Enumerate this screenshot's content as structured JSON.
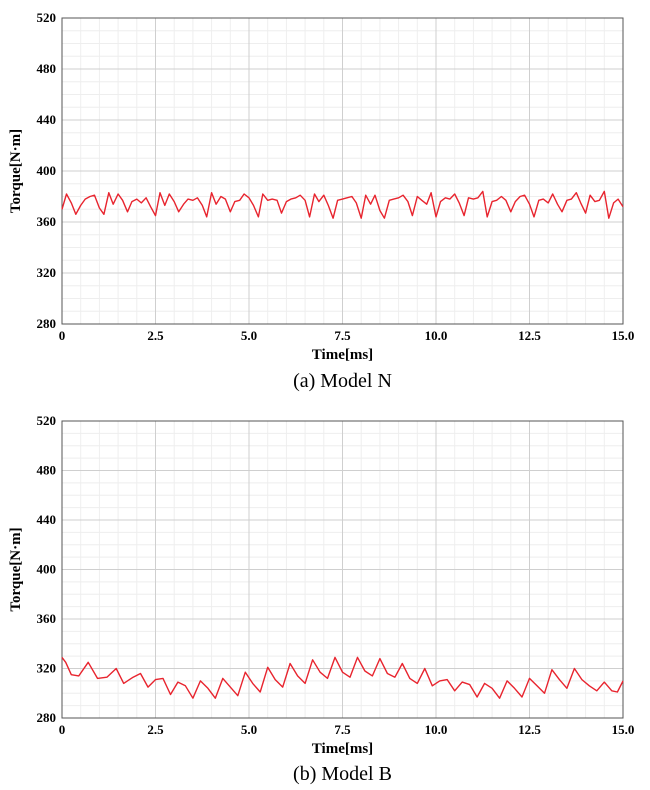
{
  "chart_data": [
    {
      "type": "line",
      "caption": "(a) Model N",
      "xlabel": "Time[ms]",
      "ylabel": "Torque[N·m]",
      "xlim": [
        0,
        15
      ],
      "ylim": [
        280,
        520
      ],
      "xticks": [
        "0",
        "2.5",
        "5.0",
        "7.5",
        "10.0",
        "12.5",
        "15.0"
      ],
      "yticks": [
        "280",
        "320",
        "360",
        "400",
        "440",
        "480",
        "520"
      ],
      "grid": true,
      "line_color": "#e8242e",
      "series": [
        {
          "x": [
            0,
            0.12,
            0.25,
            0.37,
            0.5,
            0.62,
            0.75,
            0.87,
            1.0,
            1.12,
            1.25,
            1.37,
            1.5,
            1.62,
            1.75,
            1.87,
            2.0,
            2.12,
            2.25,
            2.37,
            2.5,
            2.62,
            2.75,
            2.87,
            3.0,
            3.12,
            3.25,
            3.37,
            3.5,
            3.62,
            3.75,
            3.87,
            4.0,
            4.12,
            4.25,
            4.37,
            4.5,
            4.62,
            4.75,
            4.87,
            5.0,
            5.12,
            5.25,
            5.37,
            5.5,
            5.62,
            5.75,
            5.87,
            6.0,
            6.12,
            6.25,
            6.37,
            6.5,
            6.62,
            6.75,
            6.87,
            7.0,
            7.12,
            7.25,
            7.37,
            7.5,
            7.62,
            7.75,
            7.87,
            8.0,
            8.12,
            8.25,
            8.37,
            8.5,
            8.62,
            8.75,
            8.87,
            9.0,
            9.12,
            9.25,
            9.37,
            9.5,
            9.62,
            9.75,
            9.87,
            10.0,
            10.12,
            10.25,
            10.37,
            10.5,
            10.62,
            10.75,
            10.87,
            11.0,
            11.12,
            11.25,
            11.37,
            11.5,
            11.62,
            11.75,
            11.87,
            12.0,
            12.12,
            12.25,
            12.37,
            12.5,
            12.62,
            12.75,
            12.87,
            13.0,
            13.12,
            13.25,
            13.37,
            13.5,
            13.62,
            13.75,
            13.87,
            14.0,
            14.12,
            14.25,
            14.37,
            14.5,
            14.62,
            14.75,
            14.87,
            15.0
          ],
          "y": [
            370,
            382,
            375,
            366,
            373,
            378,
            380,
            381,
            371,
            366,
            383,
            374,
            382,
            377,
            368,
            376,
            378,
            375,
            379,
            372,
            365,
            383,
            373,
            382,
            376,
            368,
            374,
            378,
            377,
            379,
            373,
            364,
            383,
            374,
            380,
            378,
            368,
            376,
            377,
            382,
            379,
            373,
            364,
            382,
            377,
            378,
            377,
            367,
            376,
            378,
            379,
            381,
            377,
            364,
            382,
            376,
            381,
            373,
            363,
            377,
            378,
            379,
            380,
            375,
            363,
            381,
            374,
            381,
            369,
            363,
            377,
            378,
            379,
            381,
            376,
            365,
            380,
            377,
            374,
            383,
            364,
            376,
            379,
            378,
            382,
            375,
            365,
            379,
            378,
            379,
            384,
            364,
            376,
            377,
            380,
            377,
            368,
            376,
            380,
            381,
            374,
            364,
            377,
            378,
            375,
            382,
            374,
            368,
            377,
            378,
            383,
            375,
            367,
            381,
            376,
            377,
            384,
            363,
            375,
            378,
            372
          ]
        }
      ]
    },
    {
      "type": "line",
      "caption": "(b) Model B",
      "xlabel": "Time[ms]",
      "ylabel": "Torque[N·m]",
      "xlim": [
        0,
        15
      ],
      "ylim": [
        280,
        520
      ],
      "xticks": [
        "0",
        "2.5",
        "5.0",
        "7.5",
        "10.0",
        "12.5",
        "15.0"
      ],
      "yticks": [
        "280",
        "320",
        "360",
        "400",
        "440",
        "480",
        "520"
      ],
      "grid": true,
      "line_color": "#e8242e",
      "series": [
        {
          "x": [
            0,
            0.1,
            0.25,
            0.45,
            0.7,
            0.95,
            1.2,
            1.45,
            1.65,
            1.9,
            2.1,
            2.3,
            2.5,
            2.7,
            2.9,
            3.1,
            3.3,
            3.5,
            3.7,
            3.9,
            4.1,
            4.3,
            4.5,
            4.7,
            4.9,
            5.1,
            5.3,
            5.5,
            5.7,
            5.9,
            6.1,
            6.3,
            6.5,
            6.7,
            6.9,
            7.1,
            7.3,
            7.5,
            7.7,
            7.9,
            8.1,
            8.3,
            8.5,
            8.7,
            8.9,
            9.1,
            9.3,
            9.5,
            9.7,
            9.9,
            10.1,
            10.3,
            10.5,
            10.7,
            10.9,
            11.1,
            11.3,
            11.5,
            11.7,
            11.9,
            12.1,
            12.3,
            12.5,
            12.7,
            12.9,
            13.1,
            13.3,
            13.5,
            13.7,
            13.9,
            14.1,
            14.3,
            14.5,
            14.7,
            14.85,
            15.0
          ],
          "y": [
            329,
            325,
            315,
            314,
            325,
            312,
            313,
            320,
            308,
            313,
            316,
            305,
            311,
            312,
            299,
            309,
            306,
            296,
            310,
            304,
            296,
            312,
            305,
            298,
            317,
            308,
            301,
            321,
            311,
            305,
            324,
            314,
            308,
            327,
            317,
            312,
            329,
            317,
            313,
            329,
            318,
            314,
            328,
            316,
            313,
            324,
            312,
            308,
            320,
            306,
            310,
            311,
            302,
            309,
            307,
            297,
            308,
            304,
            296,
            310,
            304,
            297,
            312,
            306,
            300,
            319,
            311,
            304,
            320,
            311,
            306,
            302,
            309,
            302,
            301,
            310
          ]
        }
      ]
    }
  ]
}
